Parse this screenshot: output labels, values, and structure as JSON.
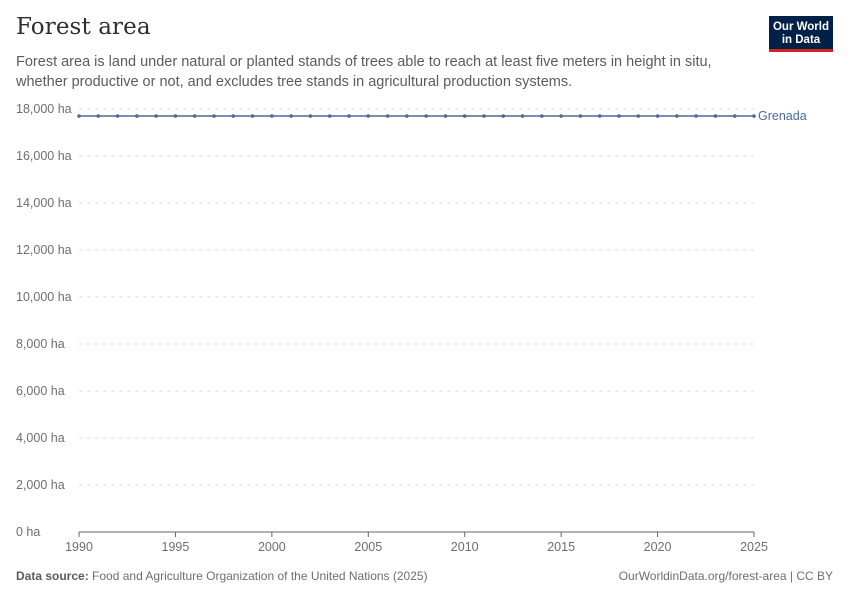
{
  "header": {
    "title": "Forest area",
    "subtitle": "Forest area is land under natural or planted stands of trees able to reach at least five meters in height in situ, whether productive or not, and excludes tree stands in agricultural production systems."
  },
  "logo": {
    "line1": "Our World",
    "line2": "in Data"
  },
  "footer": {
    "source_label": "Data source:",
    "source_text": "Food and Agriculture Organization of the United Nations (2025)",
    "credit": "OurWorldinData.org/forest-area | CC BY"
  },
  "colors": {
    "series": "#4c6a9c",
    "grid": "#dddddd",
    "axis": "#666666"
  },
  "chart_data": {
    "type": "line",
    "title": "Forest area",
    "xlabel": "",
    "ylabel": "",
    "unit": "ha",
    "xlim": [
      1990,
      2025
    ],
    "ylim": [
      0,
      18000
    ],
    "x_ticks": [
      1990,
      1995,
      2000,
      2005,
      2010,
      2015,
      2020,
      2025
    ],
    "y_ticks": [
      0,
      2000,
      4000,
      6000,
      8000,
      10000,
      12000,
      14000,
      16000,
      18000
    ],
    "y_tick_labels": [
      "0 ha",
      "2,000 ha",
      "4,000 ha",
      "6,000 ha",
      "8,000 ha",
      "10,000 ha",
      "12,000 ha",
      "14,000 ha",
      "16,000 ha",
      "18,000 ha"
    ],
    "series": [
      {
        "name": "Grenada",
        "x": [
          1990,
          1991,
          1992,
          1993,
          1994,
          1995,
          1996,
          1997,
          1998,
          1999,
          2000,
          2001,
          2002,
          2003,
          2004,
          2005,
          2006,
          2007,
          2008,
          2009,
          2010,
          2011,
          2012,
          2013,
          2014,
          2015,
          2016,
          2017,
          2018,
          2019,
          2020,
          2021,
          2022,
          2023,
          2024,
          2025
        ],
        "values": [
          17700,
          17700,
          17700,
          17700,
          17700,
          17700,
          17700,
          17700,
          17700,
          17700,
          17700,
          17700,
          17700,
          17700,
          17700,
          17700,
          17700,
          17700,
          17700,
          17700,
          17700,
          17700,
          17700,
          17700,
          17700,
          17700,
          17700,
          17700,
          17700,
          17700,
          17700,
          17700,
          17700,
          17700,
          17700,
          17700
        ]
      }
    ]
  }
}
